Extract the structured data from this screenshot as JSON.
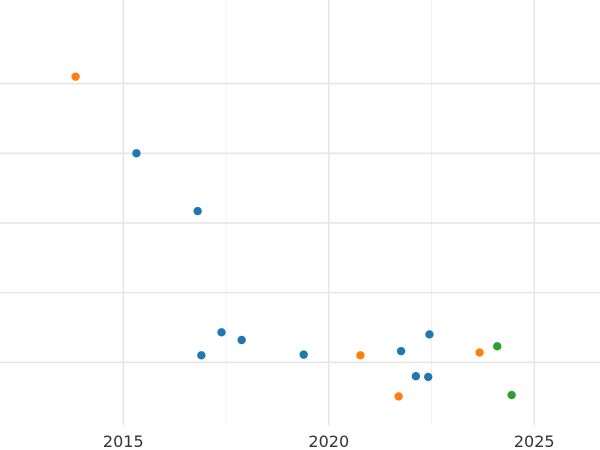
{
  "chart_data": {
    "type": "scatter",
    "title": "",
    "xlabel": "",
    "ylabel": "",
    "x_ticks": [
      2015,
      2020,
      2025
    ],
    "xlim": [
      2012,
      2026.6
    ],
    "ylim": [
      -0.9,
      5.2
    ],
    "grid": true,
    "grid_major_y": [
      4,
      3,
      2,
      1,
      0
    ],
    "grid_minor_x": [
      2017.5,
      2022.5
    ],
    "series": [
      {
        "color": "#1f77b4",
        "points": [
          {
            "x": 2015.32,
            "y": 3.0
          },
          {
            "x": 2016.81,
            "y": 2.17
          },
          {
            "x": 2016.9,
            "y": 0.1
          },
          {
            "x": 2017.39,
            "y": 0.43
          },
          {
            "x": 2017.88,
            "y": 0.32
          },
          {
            "x": 2019.39,
            "y": 0.11
          },
          {
            "x": 2021.76,
            "y": 0.16
          },
          {
            "x": 2022.12,
            "y": -0.2
          },
          {
            "x": 2022.42,
            "y": -0.21
          },
          {
            "x": 2022.45,
            "y": 0.4
          }
        ]
      },
      {
        "color": "#ff7f0e",
        "points": [
          {
            "x": 2013.84,
            "y": 4.1
          },
          {
            "x": 2020.77,
            "y": 0.1
          },
          {
            "x": 2021.7,
            "y": -0.49
          },
          {
            "x": 2023.67,
            "y": 0.14
          }
        ]
      },
      {
        "color": "#2ca02c",
        "points": [
          {
            "x": 2024.1,
            "y": 0.23
          },
          {
            "x": 2024.45,
            "y": -0.47
          }
        ]
      }
    ]
  }
}
